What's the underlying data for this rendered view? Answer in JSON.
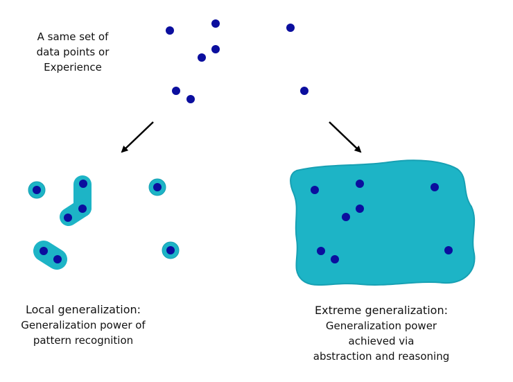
{
  "top_label": [
    "A same set of",
    "data points or",
    "Experience"
  ],
  "left_label": {
    "title": "Local generalization:",
    "lines": [
      "Generalization power of",
      "pattern recognition"
    ]
  },
  "right_label": {
    "title": "Extreme generalization:",
    "lines": [
      "Generalization power",
      "achieved via",
      "abstraction and reasoning"
    ]
  },
  "colors": {
    "point": "#0b0e9e",
    "region": "#1db4c6",
    "region_edge": "#17a0b3",
    "arrow": "#000000"
  }
}
